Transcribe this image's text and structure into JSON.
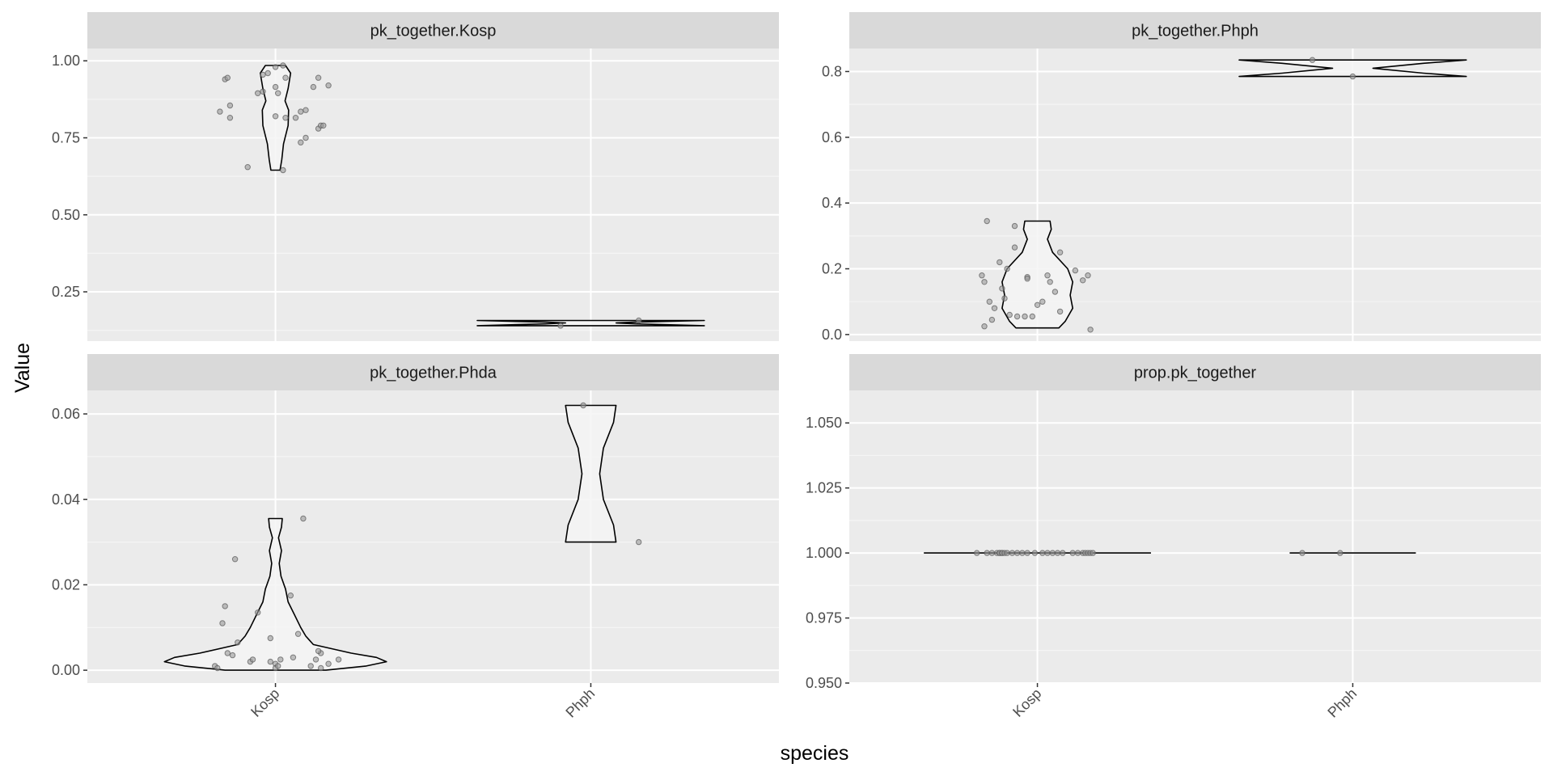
{
  "chart_data": {
    "type": "violin",
    "xlabel": "species",
    "ylabel": "Value",
    "categories": [
      "Kosp",
      "Phph"
    ],
    "colors": {
      "panel_bg": "#ebebeb",
      "grid_major": "#ffffff",
      "grid_minor": "#f5f5f5",
      "strip_bg": "#d9d9d9",
      "violin_fill": "#f5f5f5",
      "violin_stroke": "#000000",
      "point_fill": "#9a9a9a",
      "point_stroke": "#555555"
    },
    "panels": [
      {
        "title": "pk_together.Kosp",
        "ylim": [
          0.09,
          1.04
        ],
        "yticks": [
          0.25,
          0.5,
          0.75,
          1.0
        ],
        "ytick_labels": [
          "0.25",
          "0.50",
          "0.75",
          "1.00"
        ],
        "groups": [
          {
            "category": "Kosp",
            "points": [
              0.94,
              0.945,
              0.835,
              0.815,
              0.855,
              0.655,
              0.895,
              0.9,
              0.955,
              0.96,
              0.82,
              0.915,
              0.895,
              0.985,
              0.98,
              0.645,
              0.945,
              0.815,
              0.815,
              0.835,
              0.84,
              0.735,
              0.75,
              0.915,
              0.945,
              0.78,
              0.79,
              0.79,
              0.92
            ],
            "point_x_offsets": [
              -0.2,
              -0.19,
              -0.22,
              -0.18,
              -0.18,
              -0.11,
              -0.07,
              -0.05,
              -0.05,
              -0.03,
              0.0,
              0.0,
              0.01,
              0.03,
              0.0,
              0.03,
              0.04,
              0.04,
              0.08,
              0.1,
              0.12,
              0.1,
              0.12,
              0.15,
              0.17,
              0.17,
              0.18,
              0.19,
              0.21
            ],
            "violin": {
              "y": [
                0.645,
                0.68,
                0.73,
                0.79,
                0.84,
                0.87,
                0.91,
                0.96,
                0.985
              ],
              "half_width": [
                0.018,
                0.025,
                0.032,
                0.05,
                0.052,
                0.038,
                0.05,
                0.06,
                0.04
              ]
            }
          },
          {
            "category": "Phph",
            "points": [
              0.157,
              0.14
            ],
            "point_x_offsets": [
              0.19,
              -0.12
            ],
            "violin": {
              "y": [
                0.14,
                0.146,
                0.149,
                0.152,
                0.157
              ],
              "half_width": [
                0.45,
                0.18,
                0.1,
                0.18,
                0.45
              ]
            }
          }
        ]
      },
      {
        "title": "pk_together.Phph",
        "ylim": [
          -0.02,
          0.87
        ],
        "yticks": [
          0.0,
          0.2,
          0.4,
          0.6,
          0.8
        ],
        "ytick_labels": [
          "0.0",
          "0.2",
          "0.4",
          "0.6",
          "0.8"
        ],
        "groups": [
          {
            "category": "Kosp",
            "points": [
              0.345,
              0.025,
              0.18,
              0.16,
              0.1,
              0.08,
              0.045,
              0.22,
              0.14,
              0.2,
              0.11,
              0.06,
              0.33,
              0.265,
              0.055,
              0.055,
              0.175,
              0.17,
              0.055,
              0.09,
              0.18,
              0.1,
              0.16,
              0.13,
              0.07,
              0.25,
              0.195,
              0.165,
              0.18,
              0.015
            ],
            "point_x_offsets": [
              -0.2,
              -0.21,
              -0.22,
              -0.21,
              -0.19,
              -0.17,
              -0.18,
              -0.15,
              -0.14,
              -0.12,
              -0.13,
              -0.11,
              -0.09,
              -0.09,
              -0.08,
              -0.05,
              -0.04,
              -0.04,
              -0.02,
              0.0,
              0.04,
              0.02,
              0.05,
              0.07,
              0.09,
              0.09,
              0.15,
              0.18,
              0.2,
              0.21
            ],
            "violin": {
              "y": [
                0.02,
                0.04,
                0.08,
                0.12,
                0.16,
                0.2,
                0.25,
                0.29,
                0.32,
                0.345
              ],
              "half_width": [
                0.085,
                0.11,
                0.14,
                0.13,
                0.14,
                0.12,
                0.06,
                0.04,
                0.055,
                0.05
              ]
            }
          },
          {
            "category": "Phph",
            "points": [
              0.835,
              0.785
            ],
            "point_x_offsets": [
              -0.16,
              0.0
            ],
            "violin": {
              "y": [
                0.785,
                0.795,
                0.81,
                0.825,
                0.835
              ],
              "half_width": [
                0.45,
                0.28,
                0.08,
                0.28,
                0.45
              ]
            }
          }
        ]
      },
      {
        "title": "pk_together.Phda",
        "ylim": [
          -0.003,
          0.0655
        ],
        "yticks": [
          0.0,
          0.02,
          0.04,
          0.06
        ],
        "ytick_labels": [
          "0.00",
          "0.02",
          "0.04",
          "0.06"
        ],
        "groups": [
          {
            "category": "Kosp",
            "points": [
              0.001,
              0.0005,
              0.011,
              0.015,
              0.004,
              0.0035,
              0.0065,
              0.026,
              0.002,
              0.0025,
              0.0135,
              0.0075,
              0.002,
              0.0015,
              0.0005,
              0.001,
              0.0025,
              0.0175,
              0.003,
              0.0085,
              0.0355,
              0.001,
              0.0025,
              0.0005,
              0.004,
              0.0045,
              0.0015,
              0.0025
            ],
            "point_x_offsets": [
              -0.24,
              -0.23,
              -0.21,
              -0.2,
              -0.19,
              -0.17,
              -0.15,
              -0.16,
              -0.1,
              -0.09,
              -0.07,
              -0.02,
              -0.02,
              0.0,
              0.0,
              0.01,
              0.02,
              0.06,
              0.07,
              0.09,
              0.11,
              0.14,
              0.16,
              0.18,
              0.18,
              0.17,
              0.21,
              0.25
            ],
            "violin": {
              "y": [
                0.0,
                0.001,
                0.002,
                0.003,
                0.004,
                0.006,
                0.008,
                0.01,
                0.013,
                0.016,
                0.019,
                0.022,
                0.025,
                0.028,
                0.031,
                0.0335,
                0.0355
              ],
              "half_width": [
                0.2,
                0.36,
                0.44,
                0.4,
                0.3,
                0.15,
                0.12,
                0.1,
                0.075,
                0.05,
                0.04,
                0.022,
                0.015,
                0.024,
                0.012,
                0.024,
                0.027
              ]
            }
          },
          {
            "category": "Phph",
            "points": [
              0.062,
              0.03
            ],
            "point_x_offsets": [
              -0.03,
              0.19
            ],
            "violin": {
              "y": [
                0.03,
                0.034,
                0.04,
                0.046,
                0.052,
                0.058,
                0.062
              ],
              "half_width": [
                0.1,
                0.09,
                0.05,
                0.035,
                0.05,
                0.09,
                0.1
              ]
            }
          }
        ]
      },
      {
        "title": "prop.pk_together",
        "ylim": [
          0.95,
          1.0625
        ],
        "yticks": [
          0.95,
          0.975,
          1.0,
          1.025,
          1.05
        ],
        "ytick_labels": [
          "0.950",
          "0.975",
          "1.000",
          "1.025",
          "1.050"
        ],
        "groups": [
          {
            "category": "Kosp",
            "points": [
              1,
              1,
              1,
              1,
              1,
              1,
              1,
              1,
              1,
              1,
              1,
              1,
              1,
              1,
              1,
              1,
              1,
              1,
              1,
              1,
              1,
              1,
              1,
              1,
              1,
              1,
              1
            ],
            "point_x_offsets": [
              -0.24,
              -0.2,
              -0.18,
              -0.16,
              -0.15,
              -0.15,
              -0.14,
              -0.14,
              -0.13,
              -0.12,
              -0.1,
              -0.08,
              -0.06,
              -0.04,
              -0.01,
              0.02,
              0.04,
              0.06,
              0.08,
              0.1,
              0.14,
              0.16,
              0.18,
              0.19,
              0.2,
              0.21,
              0.22
            ],
            "violin": {
              "y": [
                1.0,
                1.0
              ],
              "half_width": [
                0.45,
                0.45
              ]
            }
          },
          {
            "category": "Phph",
            "points": [
              1,
              1
            ],
            "point_x_offsets": [
              -0.2,
              -0.05
            ],
            "violin": {
              "y": [
                1.0,
                1.0
              ],
              "half_width": [
                0.25,
                0.25
              ]
            }
          }
        ]
      }
    ]
  }
}
